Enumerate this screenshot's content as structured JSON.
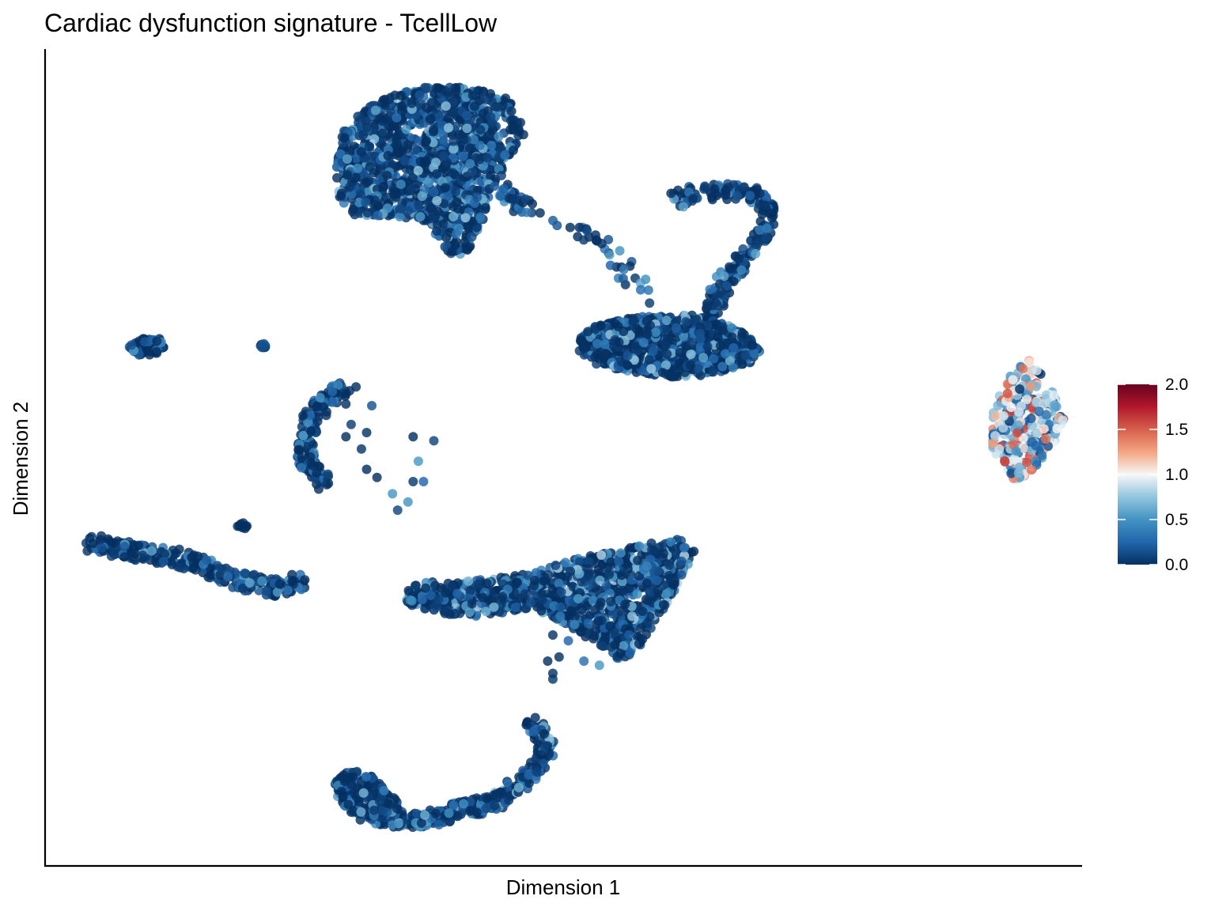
{
  "chart_data": {
    "type": "scatter",
    "title": "Cardiac dysfunction signature - TcellLow",
    "xlabel": "Dimension 1",
    "ylabel": "Dimension 2",
    "xlim": [
      0,
      100
    ],
    "ylim": [
      0,
      100
    ],
    "axis_ticks": "none",
    "grid": false,
    "legend": {
      "type": "colorbar",
      "placement": "right",
      "min": 0.0,
      "max": 2.0,
      "ticks": [
        "2.0",
        "1.5",
        "1.0",
        "0.5",
        "0.0"
      ],
      "colors": [
        "#053061",
        "#2166ac",
        "#4393c3",
        "#92c5de",
        "#f7f7f7",
        "#f4a582",
        "#d6604d",
        "#b2182b",
        "#67001f"
      ]
    },
    "point_color_default": "#0b2e5c",
    "clusters": [
      {
        "name": "upper-left-fan",
        "shape": "polygon",
        "n": 1300,
        "color_value_range": [
          0.0,
          0.75
        ],
        "outline": [
          [
            28.5,
            89.5
          ],
          [
            30,
            92
          ],
          [
            33.5,
            94.5
          ],
          [
            37,
            95.5
          ],
          [
            40,
            95.5
          ],
          [
            43.5,
            94.8
          ],
          [
            45.5,
            93
          ],
          [
            46.5,
            90
          ],
          [
            45,
            87
          ],
          [
            44,
            85
          ],
          [
            43,
            82.5
          ],
          [
            42,
            78
          ],
          [
            41,
            75.5
          ],
          [
            40,
            74.5
          ],
          [
            38.5,
            75
          ],
          [
            37.5,
            77.5
          ],
          [
            36.5,
            79
          ],
          [
            33.5,
            79.5
          ],
          [
            30,
            79.5
          ],
          [
            28.5,
            81
          ],
          [
            28,
            85
          ]
        ]
      },
      {
        "name": "fan-tail",
        "shape": "path",
        "n": 40,
        "color_value_range": [
          0.0,
          0.7
        ],
        "path": [
          [
            43.5,
            84
          ],
          [
            44.5,
            82
          ],
          [
            46,
            81
          ],
          [
            47.5,
            80.5
          ]
        ]
      },
      {
        "name": "right-arc",
        "shape": "path",
        "n": 220,
        "color_value_range": [
          0.0,
          0.6
        ],
        "path": [
          [
            61,
            81.5
          ],
          [
            64,
            82.5
          ],
          [
            67,
            82.5
          ],
          [
            69.5,
            81.5
          ],
          [
            70,
            79
          ],
          [
            69,
            76.5
          ],
          [
            67,
            73.5
          ],
          [
            65.5,
            71
          ],
          [
            64.5,
            68.5
          ],
          [
            63.5,
            66
          ]
        ]
      },
      {
        "name": "right-arc-thread",
        "shape": "path",
        "n": 35,
        "color_value_range": [
          0.0,
          0.6
        ],
        "path": [
          [
            49.5,
            78.5
          ],
          [
            52,
            78
          ],
          [
            54,
            75.5
          ],
          [
            56,
            73
          ],
          [
            57.5,
            70.5
          ],
          [
            58.5,
            68
          ]
        ]
      },
      {
        "name": "right-blob",
        "shape": "polygon",
        "n": 1100,
        "color_value_range": [
          0.0,
          0.8
        ],
        "outline": [
          [
            51.5,
            64.5
          ],
          [
            53,
            66
          ],
          [
            57,
            67.2
          ],
          [
            62,
            67.5
          ],
          [
            65.5,
            66.5
          ],
          [
            68,
            65
          ],
          [
            69,
            63
          ],
          [
            68,
            61.5
          ],
          [
            64,
            60
          ],
          [
            60,
            59.8
          ],
          [
            56,
            60.5
          ],
          [
            53,
            61.5
          ],
          [
            51.5,
            63
          ]
        ]
      },
      {
        "name": "small-left",
        "shape": "polygon",
        "n": 70,
        "color_value_range": [
          0.0,
          0.6
        ],
        "outline": [
          [
            8,
            63.5
          ],
          [
            9,
            64.5
          ],
          [
            11,
            64.5
          ],
          [
            11.5,
            63.5
          ],
          [
            10.5,
            62.5
          ],
          [
            8.5,
            62.5
          ]
        ]
      },
      {
        "name": "tiny-dot",
        "shape": "polygon",
        "n": 12,
        "color_value_range": [
          0.0,
          0.2
        ],
        "outline": [
          [
            20.5,
            63.5
          ],
          [
            21,
            64
          ],
          [
            21.5,
            63.5
          ],
          [
            21,
            63
          ]
        ]
      },
      {
        "name": "crescent",
        "shape": "path",
        "n": 160,
        "color_value_range": [
          0.0,
          0.6
        ],
        "path": [
          [
            29.5,
            58.3
          ],
          [
            28,
            58
          ],
          [
            26.5,
            56.5
          ],
          [
            25.5,
            54
          ],
          [
            25,
            51
          ],
          [
            25.5,
            48.5
          ],
          [
            27,
            46.5
          ]
        ]
      },
      {
        "name": "crescent-scatter",
        "shape": "points",
        "color_value_range": [
          0.0,
          0.6
        ],
        "points": [
          [
            29,
            56.5
          ],
          [
            31.5,
            56.3
          ],
          [
            29.5,
            54
          ],
          [
            31,
            53
          ],
          [
            29,
            52.5
          ],
          [
            30.5,
            51
          ],
          [
            35.5,
            52.5
          ],
          [
            37.5,
            52
          ],
          [
            36,
            49.5
          ],
          [
            31,
            48.5
          ],
          [
            35.5,
            47
          ],
          [
            36.5,
            47
          ],
          [
            32,
            47.5
          ],
          [
            33.5,
            45.5
          ],
          [
            35,
            44.5
          ],
          [
            34,
            43.5
          ]
        ]
      },
      {
        "name": "mid-left-line",
        "shape": "path",
        "n": 320,
        "color_value_range": [
          0.0,
          0.7
        ],
        "path": [
          [
            4.5,
            39.5
          ],
          [
            8,
            38.5
          ],
          [
            12,
            37.8
          ],
          [
            15,
            37
          ],
          [
            18,
            35
          ],
          [
            21,
            34.3
          ],
          [
            23,
            33.8
          ],
          [
            24.5,
            34.8
          ]
        ]
      },
      {
        "name": "tiny-dot-2",
        "shape": "polygon",
        "n": 10,
        "color_value_range": [
          0.0,
          0.2
        ],
        "outline": [
          [
            18.5,
            41.5
          ],
          [
            19,
            42
          ],
          [
            19.5,
            41.5
          ],
          [
            19,
            41
          ]
        ]
      },
      {
        "name": "lower-mid-wing",
        "shape": "polygon",
        "n": 1100,
        "color_value_range": [
          0.0,
          0.85
        ],
        "outline": [
          [
            34.5,
            34
          ],
          [
            37,
            34.7
          ],
          [
            42,
            35
          ],
          [
            47,
            35.8
          ],
          [
            51,
            37.5
          ],
          [
            55,
            38.5
          ],
          [
            58.5,
            39.5
          ],
          [
            61.5,
            40
          ],
          [
            63,
            38.5
          ],
          [
            61.5,
            35
          ],
          [
            59.5,
            31
          ],
          [
            57,
            26
          ],
          [
            55.5,
            25
          ],
          [
            54,
            26.5
          ],
          [
            52,
            28
          ],
          [
            49.5,
            30
          ],
          [
            47,
            31.5
          ],
          [
            44.5,
            31
          ],
          [
            42,
            30.5
          ],
          [
            39.5,
            30.5
          ],
          [
            37,
            31
          ],
          [
            35,
            32
          ]
        ]
      },
      {
        "name": "lower-wing-scatter",
        "shape": "points",
        "color_value_range": [
          0.0,
          0.9
        ],
        "points": [
          [
            49,
            28.2
          ],
          [
            49.6,
            25.5
          ],
          [
            49,
            23.5
          ],
          [
            49,
            22.8
          ],
          [
            48.5,
            25
          ],
          [
            52,
            25
          ],
          [
            53.5,
            24.5
          ],
          [
            55,
            27
          ],
          [
            50.5,
            27.5
          ]
        ]
      },
      {
        "name": "bottom-arc",
        "shape": "path",
        "n": 400,
        "color_value_range": [
          0.0,
          0.75
        ],
        "path": [
          [
            28.5,
            9.5
          ],
          [
            30,
            7
          ],
          [
            33,
            5.5
          ],
          [
            37,
            5.7
          ],
          [
            40,
            6.7
          ],
          [
            43,
            7.5
          ],
          [
            45.5,
            9.5
          ],
          [
            47.5,
            12
          ],
          [
            48.5,
            14
          ],
          [
            47,
            17.5
          ]
        ]
      },
      {
        "name": "bottom-arc-blob",
        "shape": "polygon",
        "n": 220,
        "color_value_range": [
          0.0,
          0.7
        ],
        "outline": [
          [
            28,
            10.5
          ],
          [
            29.5,
            11.7
          ],
          [
            31.5,
            11
          ],
          [
            33,
            9
          ],
          [
            34.5,
            7.2
          ],
          [
            32.5,
            5.8
          ],
          [
            30,
            6.2
          ],
          [
            28.5,
            7.5
          ]
        ]
      },
      {
        "name": "far-right-ellipse",
        "shape": "polygon",
        "n": 300,
        "color_value_range": [
          0.0,
          2.0
        ],
        "skew": "mixed",
        "outline": [
          [
            91.5,
            55.5
          ],
          [
            92.5,
            58.7
          ],
          [
            94,
            61.5
          ],
          [
            95,
            62
          ],
          [
            96,
            60.5
          ],
          [
            97.5,
            57.5
          ],
          [
            98.5,
            55
          ],
          [
            98,
            53
          ],
          [
            96.5,
            50
          ],
          [
            95,
            48
          ],
          [
            93.5,
            47
          ],
          [
            92.5,
            48.5
          ],
          [
            91.5,
            51
          ]
        ]
      }
    ]
  }
}
